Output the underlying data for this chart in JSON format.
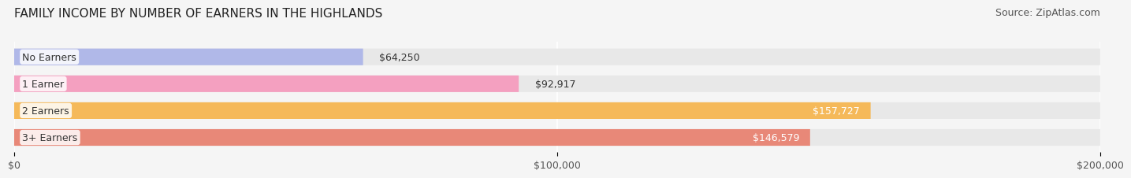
{
  "title": "FAMILY INCOME BY NUMBER OF EARNERS IN THE HIGHLANDS",
  "source": "Source: ZipAtlas.com",
  "categories": [
    "No Earners",
    "1 Earner",
    "2 Earners",
    "3+ Earners"
  ],
  "values": [
    64250,
    92917,
    157727,
    146579
  ],
  "bar_colors": [
    "#b0b8e8",
    "#f4a0c0",
    "#f5b95a",
    "#e88878"
  ],
  "value_labels": [
    "$64,250",
    "$92,917",
    "$157,727",
    "$146,579"
  ],
  "xlim": [
    0,
    200000
  ],
  "xticks": [
    0,
    100000,
    200000
  ],
  "xtick_labels": [
    "$0",
    "$100,000",
    "$200,000"
  ],
  "bg_color": "#f5f5f5",
  "bar_bg_color": "#e8e8e8",
  "title_fontsize": 11,
  "source_fontsize": 9,
  "label_fontsize": 9,
  "value_fontsize": 9,
  "tick_fontsize": 9
}
